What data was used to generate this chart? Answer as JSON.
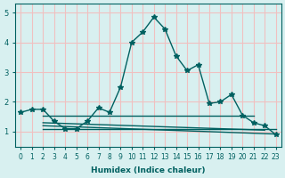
{
  "xlabel": "Humidex (Indice chaleur)",
  "bg_color": "#d8f0f0",
  "grid_color": "#f0c0c0",
  "line_color": "#006060",
  "xlim": [
    -0.5,
    23.5
  ],
  "ylim": [
    0.5,
    5.3
  ],
  "yticks": [
    1,
    2,
    3,
    4,
    5
  ],
  "xticks": [
    0,
    1,
    2,
    3,
    4,
    5,
    6,
    7,
    8,
    9,
    10,
    11,
    12,
    13,
    14,
    15,
    16,
    17,
    18,
    19,
    20,
    21,
    22,
    23
  ],
  "main_x": [
    0,
    1,
    2,
    3,
    4,
    5,
    6,
    7,
    8,
    9,
    10,
    11,
    12,
    13,
    14,
    15,
    16,
    17,
    18,
    19,
    20,
    21,
    22,
    23
  ],
  "main_y": [
    1.65,
    1.75,
    1.75,
    1.35,
    1.1,
    1.1,
    1.35,
    1.8,
    1.65,
    2.5,
    4.0,
    4.35,
    4.85,
    4.45,
    3.55,
    3.05,
    3.25,
    1.95,
    2.0,
    2.25,
    1.55,
    1.3,
    1.2,
    0.9
  ],
  "flat_lines": [
    {
      "x": [
        2,
        21
      ],
      "y": [
        1.55,
        1.55
      ]
    },
    {
      "x": [
        2,
        22
      ],
      "y": [
        1.3,
        1.05
      ]
    },
    {
      "x": [
        2,
        23
      ],
      "y": [
        1.2,
        0.92
      ]
    },
    {
      "x": [
        2,
        23
      ],
      "y": [
        1.1,
        1.1
      ]
    }
  ]
}
